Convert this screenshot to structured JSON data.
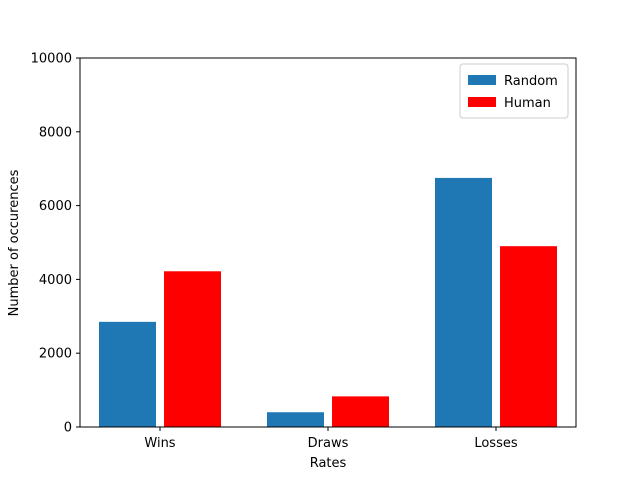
{
  "chart_data": {
    "type": "bar",
    "categories": [
      "Wins",
      "Draws",
      "Losses"
    ],
    "series": [
      {
        "name": "Random",
        "color": "#1f77b4",
        "values": [
          2850,
          400,
          6750
        ]
      },
      {
        "name": "Human",
        "color": "#ff0000",
        "values": [
          4220,
          830,
          4900
        ]
      }
    ],
    "xlabel": "Rates",
    "ylabel": "Number of occurences",
    "ylim": [
      0,
      10000
    ],
    "yticks": [
      0,
      2000,
      4000,
      6000,
      8000,
      10000
    ],
    "grid": false,
    "legend_position": "top-right"
  }
}
